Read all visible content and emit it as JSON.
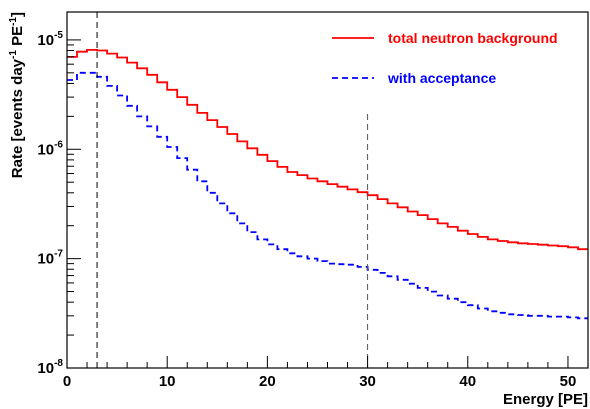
{
  "chart_data": {
    "type": "line",
    "title": "",
    "xlabel": "Energy [PE]",
    "ylabel": {
      "prefix": "Rate [events day",
      "sup1": "-1",
      "middle": " PE",
      "sup2": "-1",
      "suffix": "]"
    },
    "xlim": [
      0,
      52
    ],
    "ylim": [
      1e-08,
      1.8e-05
    ],
    "y_scale": "log",
    "grid": false,
    "legend_position": "top-right",
    "x_ticks": [
      0,
      10,
      20,
      30,
      40,
      50
    ],
    "x_tick_labels": [
      "0",
      "10",
      "20",
      "30",
      "40",
      "50"
    ],
    "y_ticks": [
      1e-08,
      1e-07,
      1e-06,
      1e-05
    ],
    "y_tick_labels": [
      {
        "base": "10",
        "exp": "-8"
      },
      {
        "base": "10",
        "exp": "-7"
      },
      {
        "base": "10",
        "exp": "-6"
      },
      {
        "base": "10",
        "exp": "-5"
      }
    ],
    "bin_edges": [
      0,
      1,
      2,
      3,
      4,
      5,
      6,
      7,
      8,
      9,
      10,
      11,
      12,
      13,
      14,
      15,
      16,
      17,
      18,
      19,
      20,
      21,
      22,
      23,
      24,
      25,
      26,
      27,
      28,
      29,
      30,
      31,
      32,
      33,
      34,
      35,
      36,
      37,
      38,
      39,
      40,
      41,
      42,
      43,
      44,
      45,
      46,
      47,
      48,
      49,
      50,
      51,
      52
    ],
    "vertical_lines": [
      {
        "x": 3,
        "ymin": 1e-08,
        "ymax": 1.8e-05,
        "color": "#000000"
      },
      {
        "x": 30,
        "ymin": 1e-08,
        "ymax": 2.1e-06,
        "color": "#555555"
      }
    ],
    "series": [
      {
        "name": "total neutron background",
        "color": "#ff0000",
        "style": "solid",
        "values": [
          7e-06,
          7.8e-06,
          8.1e-06,
          8e-06,
          7.5e-06,
          6.9e-06,
          6.2e-06,
          5.5e-06,
          4.8e-06,
          4.1e-06,
          3.5e-06,
          3e-06,
          2.55e-06,
          2.15e-06,
          1.85e-06,
          1.6e-06,
          1.38e-06,
          1.18e-06,
          1.02e-06,
          8.9e-07,
          7.8e-07,
          6.9e-07,
          6.2e-07,
          5.8e-07,
          5.4e-07,
          5.1e-07,
          4.8e-07,
          4.55e-07,
          4.3e-07,
          4.05e-07,
          3.8e-07,
          3.5e-07,
          3.2e-07,
          2.95e-07,
          2.7e-07,
          2.5e-07,
          2.3e-07,
          2.1e-07,
          1.95e-07,
          1.8e-07,
          1.68e-07,
          1.58e-07,
          1.5e-07,
          1.45e-07,
          1.41e-07,
          1.38e-07,
          1.36e-07,
          1.34e-07,
          1.32e-07,
          1.3e-07,
          1.27e-07,
          1.22e-07
        ]
      },
      {
        "name": "with acceptance",
        "color": "#0000ff",
        "style": "dashed",
        "values": [
          4.3e-06,
          5e-06,
          5e-06,
          4.6e-06,
          3.8e-06,
          3.1e-06,
          2.5e-06,
          2e-06,
          1.62e-06,
          1.3e-06,
          1.05e-06,
          8.3e-07,
          6.5e-07,
          5.1e-07,
          4e-07,
          3.2e-07,
          2.6e-07,
          2.1e-07,
          1.75e-07,
          1.5e-07,
          1.35e-07,
          1.22e-07,
          1.12e-07,
          1.05e-07,
          1e-07,
          9.5e-08,
          9e-08,
          8.9e-08,
          8.8e-08,
          8.4e-08,
          7.9e-08,
          7.4e-08,
          6.9e-08,
          6.4e-08,
          5.9e-08,
          5.4e-08,
          5e-08,
          4.6e-08,
          4.3e-08,
          4e-08,
          3.75e-08,
          3.5e-08,
          3.3e-08,
          3.2e-08,
          3.1e-08,
          3.05e-08,
          3e-08,
          3e-08,
          2.95e-08,
          2.95e-08,
          2.9e-08,
          2.85e-08
        ]
      }
    ]
  }
}
